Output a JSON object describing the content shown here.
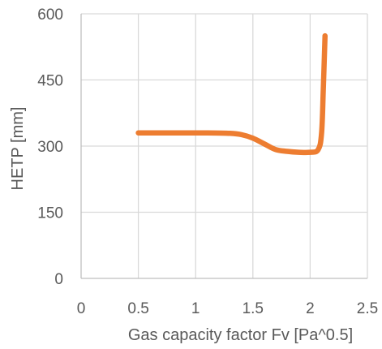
{
  "chart_data": {
    "type": "line",
    "title": "",
    "xlabel": "Gas capacity factor Fv [Pa^0.5]",
    "ylabel": "HETP [mm]",
    "xlim": [
      0,
      2.5
    ],
    "ylim": [
      0,
      600
    ],
    "x_ticks": [
      0,
      0.5,
      1,
      1.5,
      2,
      2.5
    ],
    "y_ticks": [
      0,
      150,
      300,
      450,
      600
    ],
    "x_tick_labels": [
      "0",
      "0.5",
      "1",
      "1.5",
      "2",
      "2.5"
    ],
    "y_tick_labels": [
      "0",
      "150",
      "300",
      "450",
      "600"
    ],
    "grid": true,
    "legend": "none",
    "series": [
      {
        "color": "#ED7D31",
        "x": [
          0.5,
          0.8,
          1.1,
          1.3,
          1.4,
          1.5,
          1.6,
          1.7,
          1.8,
          1.9,
          2.0,
          2.07,
          2.1,
          2.115,
          2.13
        ],
        "y": [
          330,
          330,
          330,
          329,
          326,
          318,
          305,
          292,
          288,
          286,
          286,
          292,
          330,
          430,
          550
        ]
      }
    ]
  }
}
